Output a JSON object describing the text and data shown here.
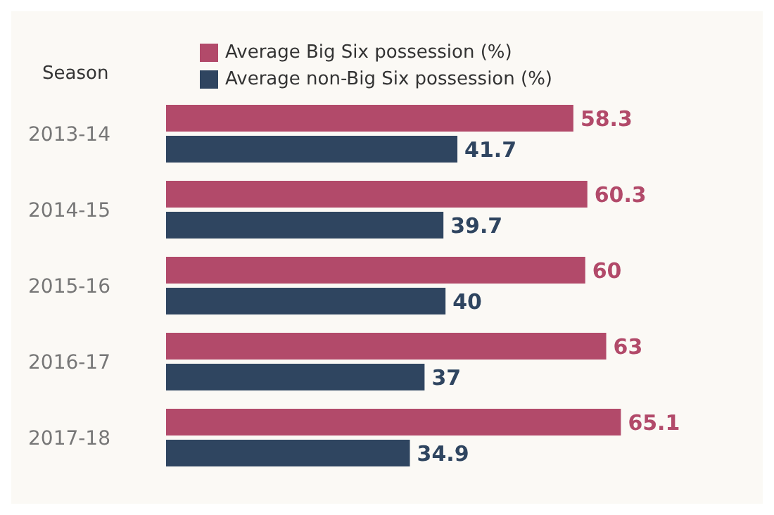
{
  "chart_data": {
    "type": "bar",
    "orientation": "horizontal",
    "ylabel": "Season",
    "categories": [
      "2013-14",
      "2014-15",
      "2015-16",
      "2016-17",
      "2017-18"
    ],
    "series": [
      {
        "name": "Average Big Six possession (%)",
        "color": "#b24a6a",
        "values": [
          58.3,
          60.3,
          60,
          63,
          65.1
        ]
      },
      {
        "name": "Average non-Big Six possession (%)",
        "color": "#2f4560",
        "values": [
          41.7,
          39.7,
          40,
          37,
          34.9
        ]
      }
    ],
    "data_labels": true,
    "legend": "top",
    "grid": false
  }
}
